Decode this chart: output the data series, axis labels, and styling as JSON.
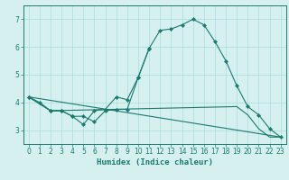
{
  "xlabel": "Humidex (Indice chaleur)",
  "color": "#1a7a6e",
  "bg_color": "#d6f0f0",
  "grid_color": "#aadddd",
  "ylim": [
    2.5,
    7.5
  ],
  "xlim": [
    -0.5,
    23.5
  ],
  "line1_x": [
    0,
    1,
    2,
    3,
    4,
    5,
    6,
    7,
    8,
    9,
    10,
    11
  ],
  "line1_y": [
    4.2,
    4.0,
    3.7,
    3.7,
    3.5,
    3.5,
    3.3,
    3.7,
    3.75,
    3.75,
    4.9,
    5.95
  ],
  "line2_x": [
    0,
    2,
    3,
    4,
    5,
    6,
    7,
    8,
    9,
    10,
    11,
    12,
    13,
    14,
    15,
    16,
    17,
    18,
    19,
    20,
    21,
    22,
    23
  ],
  "line2_y": [
    4.2,
    3.7,
    3.7,
    3.5,
    3.2,
    3.7,
    3.75,
    4.2,
    4.1,
    4.9,
    5.95,
    6.6,
    6.65,
    6.8,
    7.0,
    6.8,
    6.2,
    5.5,
    4.6,
    3.85,
    3.55,
    3.05,
    2.75
  ],
  "line3_x": [
    0,
    23
  ],
  "line3_y": [
    4.2,
    2.75
  ],
  "line4_x": [
    0,
    2,
    19,
    20,
    21,
    22,
    23
  ],
  "line4_y": [
    4.2,
    3.7,
    3.85,
    3.55,
    3.05,
    2.75,
    2.75
  ]
}
